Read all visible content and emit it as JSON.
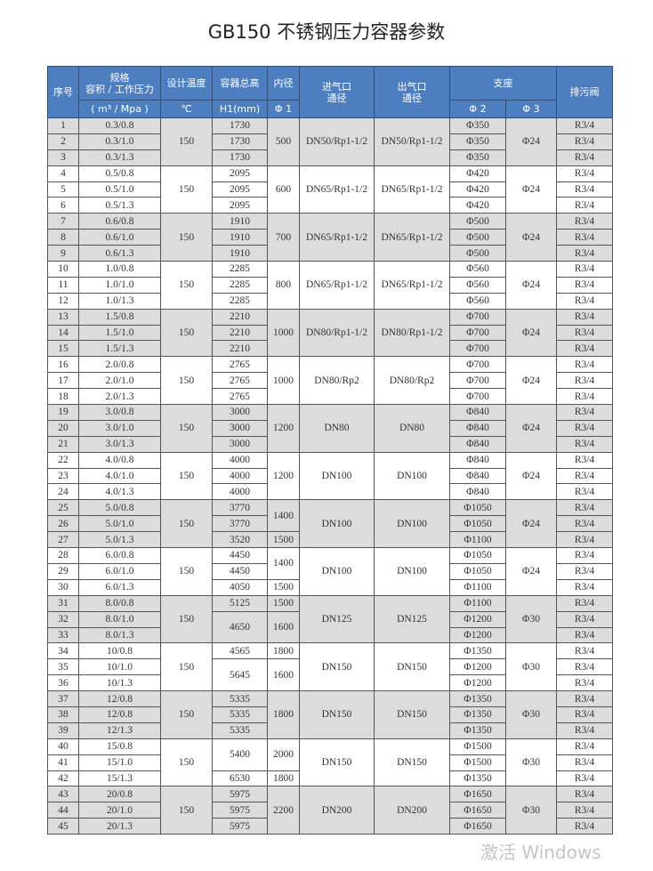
{
  "title": "GB150 不锈钢压力容器参数",
  "header": {
    "no": "序号",
    "spec_line1": "规格",
    "spec_line2": "容积 / 工作压力",
    "spec_unit": "( m³ / Mpa )",
    "temp": "设计温度",
    "temp_unit": "℃",
    "height": "容器总高",
    "height_unit": "H1(mm)",
    "diameter": "内径",
    "diameter_unit": "Φ 1",
    "inlet_line1": "进气口",
    "inlet_line2": "通径",
    "outlet_line1": "出气口",
    "outlet_line2": "通径",
    "support": "支座",
    "phi2": "Φ 2",
    "phi3": "Φ 3",
    "drain": "排污阀"
  },
  "groups": [
    {
      "spec": [
        "0.3/0.8",
        "0.3/1.0",
        "0.3/1.3"
      ],
      "temp": "150",
      "h1": [
        [
          "1730",
          1
        ],
        [
          "1730",
          1
        ],
        [
          "1730",
          1
        ]
      ],
      "d1": [
        [
          "500",
          3
        ]
      ],
      "inlet": "DN50/Rp1-1/2",
      "outlet": "DN50/Rp1-1/2",
      "phi2": [
        "Φ350",
        "Φ350",
        "Φ350"
      ],
      "phi3": "Φ24"
    },
    {
      "spec": [
        "0.5/0.8",
        "0.5/1.0",
        "0.5/1.3"
      ],
      "temp": "150",
      "h1": [
        [
          "2095",
          1
        ],
        [
          "2095",
          1
        ],
        [
          "2095",
          1
        ]
      ],
      "d1": [
        [
          "600",
          3
        ]
      ],
      "inlet": "DN65/Rp1-1/2",
      "outlet": "DN65/Rp1-1/2",
      "phi2": [
        "Φ420",
        "Φ420",
        "Φ420"
      ],
      "phi3": "Φ24"
    },
    {
      "spec": [
        "0.6/0.8",
        "0.6/1.0",
        "0.6/1.3"
      ],
      "temp": "150",
      "h1": [
        [
          "1910",
          1
        ],
        [
          "1910",
          1
        ],
        [
          "1910",
          1
        ]
      ],
      "d1": [
        [
          "700",
          3
        ]
      ],
      "inlet": "DN65/Rp1-1/2",
      "outlet": "DN65/Rp1-1/2",
      "phi2": [
        "Φ500",
        "Φ500",
        "Φ500"
      ],
      "phi3": "Φ24"
    },
    {
      "spec": [
        "1.0/0.8",
        "1.0/1.0",
        "1.0/1.3"
      ],
      "temp": "150",
      "h1": [
        [
          "2285",
          1
        ],
        [
          "2285",
          1
        ],
        [
          "2285",
          1
        ]
      ],
      "d1": [
        [
          "800",
          3
        ]
      ],
      "inlet": "DN65/Rp1-1/2",
      "outlet": "DN65/Rp1-1/2",
      "phi2": [
        "Φ560",
        "Φ560",
        "Φ560"
      ],
      "phi3": "Φ24"
    },
    {
      "spec": [
        "1.5/0.8",
        "1.5/1.0",
        "1.5/1.3"
      ],
      "temp": "150",
      "h1": [
        [
          "2210",
          1
        ],
        [
          "2210",
          1
        ],
        [
          "2210",
          1
        ]
      ],
      "d1": [
        [
          "1000",
          3
        ]
      ],
      "inlet": "DN80/Rp1-1/2",
      "outlet": "DN80/Rp1-1/2",
      "phi2": [
        "Φ700",
        "Φ700",
        "Φ700"
      ],
      "phi3": "Φ24"
    },
    {
      "spec": [
        "2.0/0.8",
        "2.0/1.0",
        "2.0/1.3"
      ],
      "temp": "150",
      "h1": [
        [
          "2765",
          1
        ],
        [
          "2765",
          1
        ],
        [
          "2765",
          1
        ]
      ],
      "d1": [
        [
          "1000",
          3
        ]
      ],
      "inlet": "DN80/Rp2",
      "outlet": "DN80/Rp2",
      "phi2": [
        "Φ700",
        "Φ700",
        "Φ700"
      ],
      "phi3": "Φ24"
    },
    {
      "spec": [
        "3.0/0.8",
        "3.0/1.0",
        "3.0/1.3"
      ],
      "temp": "150",
      "h1": [
        [
          "3000",
          1
        ],
        [
          "3000",
          1
        ],
        [
          "3000",
          1
        ]
      ],
      "d1": [
        [
          "1200",
          3
        ]
      ],
      "inlet": "DN80",
      "outlet": "DN80",
      "phi2": [
        "Φ840",
        "Φ840",
        "Φ840"
      ],
      "phi3": "Φ24"
    },
    {
      "spec": [
        "4.0/0.8",
        "4.0/1.0",
        "4.0/1.3"
      ],
      "temp": "150",
      "h1": [
        [
          "4000",
          1
        ],
        [
          "4000",
          1
        ],
        [
          "4000",
          1
        ]
      ],
      "d1": [
        [
          "1200",
          3
        ]
      ],
      "inlet": "DN100",
      "outlet": "DN100",
      "phi2": [
        "Φ840",
        "Φ840",
        "Φ840"
      ],
      "phi3": "Φ24"
    },
    {
      "spec": [
        "5.0/0.8",
        "5.0/1.0",
        "5.0/1.3"
      ],
      "temp": "150",
      "h1": [
        [
          "3770",
          1
        ],
        [
          "3770",
          1
        ],
        [
          "3520",
          1
        ]
      ],
      "d1": [
        [
          "1400",
          2
        ],
        [
          "1500",
          1
        ]
      ],
      "inlet": "DN100",
      "outlet": "DN100",
      "phi2": [
        "Φ1050",
        "Φ1050",
        "Φ1100"
      ],
      "phi3": "Φ24"
    },
    {
      "spec": [
        "6.0/0.8",
        "6.0/1.0",
        "6.0/1.3"
      ],
      "temp": "150",
      "h1": [
        [
          "4450",
          1
        ],
        [
          "4450",
          1
        ],
        [
          "4050",
          1
        ]
      ],
      "d1": [
        [
          "1400",
          2
        ],
        [
          "1500",
          1
        ]
      ],
      "inlet": "DN100",
      "outlet": "DN100",
      "phi2": [
        "Φ1050",
        "Φ1050",
        "Φ1100"
      ],
      "phi3": "Φ24"
    },
    {
      "spec": [
        "8.0/0.8",
        "8.0/1.0",
        "8.0/1.3"
      ],
      "temp": "150",
      "h1": [
        [
          "5125",
          1
        ],
        [
          "4650",
          2
        ]
      ],
      "d1": [
        [
          "1500",
          1
        ],
        [
          "1600",
          2
        ]
      ],
      "inlet": "DN125",
      "outlet": "DN125",
      "phi2": [
        "Φ1100",
        "Φ1200",
        "Φ1200"
      ],
      "phi3": "Φ30"
    },
    {
      "spec": [
        "10/0.8",
        "10/1.0",
        "10/1.3"
      ],
      "temp": "150",
      "h1": [
        [
          "4565",
          1
        ],
        [
          "5645",
          2
        ]
      ],
      "d1": [
        [
          "1800",
          1
        ],
        [
          "1600",
          2
        ]
      ],
      "inlet": "DN150",
      "outlet": "DN150",
      "phi2": [
        "Φ1350",
        "Φ1200",
        "Φ1200"
      ],
      "phi3": "Φ30"
    },
    {
      "spec": [
        "12/0.8",
        "12/0.8",
        "12/1.3"
      ],
      "temp": "150",
      "h1": [
        [
          "5335",
          1
        ],
        [
          "5335",
          1
        ],
        [
          "5335",
          1
        ]
      ],
      "d1": [
        [
          "1800",
          3
        ]
      ],
      "inlet": "DN150",
      "outlet": "DN150",
      "phi2": [
        "Φ1350",
        "Φ1350",
        "Φ1350"
      ],
      "phi3": "Φ30"
    },
    {
      "spec": [
        "15/0.8",
        "15/1.0",
        "15/1.3"
      ],
      "temp": "150",
      "h1": [
        [
          "5400",
          2
        ],
        [
          "6530",
          1
        ]
      ],
      "d1": [
        [
          "2000",
          2
        ],
        [
          "1800",
          1
        ]
      ],
      "inlet": "DN150",
      "outlet": "DN150",
      "phi2": [
        "Φ1500",
        "Φ1500",
        "Φ1350"
      ],
      "phi3": "Φ30"
    },
    {
      "spec": [
        "20/0.8",
        "20/1.0",
        "20/1.3"
      ],
      "temp": "150",
      "h1": [
        [
          "5975",
          1
        ],
        [
          "5975",
          1
        ],
        [
          "5975",
          1
        ]
      ],
      "d1": [
        [
          "2200",
          3
        ]
      ],
      "inlet": "DN200",
      "outlet": "DN200",
      "phi2": [
        "Φ1650",
        "Φ1650",
        "Φ1650"
      ],
      "phi3": "Φ30"
    }
  ],
  "drain_value": "R3/4",
  "watermark": "激活 Windows",
  "colors": {
    "header_bg": "#4d7fc0",
    "row_gray": "#dcdcdc"
  }
}
